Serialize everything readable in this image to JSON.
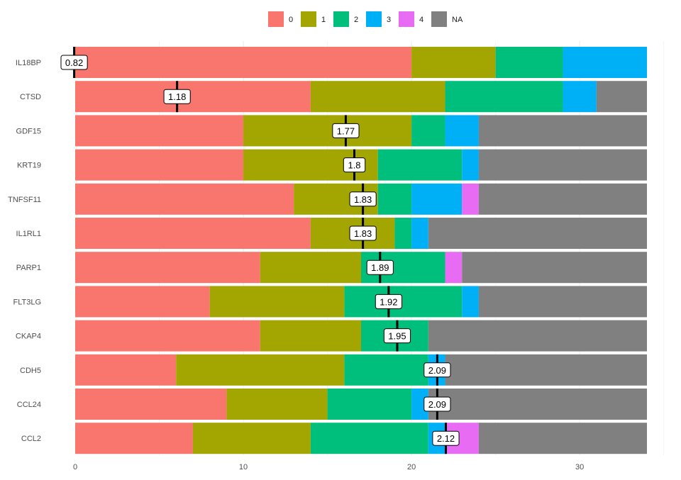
{
  "chart_data": {
    "type": "bar",
    "orientation": "horizontal",
    "stacked": true,
    "title": "",
    "xlabel": "",
    "ylabel": "",
    "xlim": [
      0,
      34
    ],
    "x_ticks": [
      0,
      10,
      20,
      30
    ],
    "grid": "vertical-only",
    "legend": {
      "position": "top-center",
      "entries": [
        "0",
        "1",
        "2",
        "3",
        "4",
        "NA"
      ]
    },
    "colors": {
      "0": "#F8766D",
      "1": "#A3A500",
      "2": "#00BF7D",
      "3": "#00B0F6",
      "4": "#E76BF3",
      "NA": "#808080"
    },
    "categories": [
      "IL18BP",
      "CTSD",
      "GDF15",
      "KRT19",
      "TNFSF11",
      "IL1RL1",
      "PARP1",
      "FLT3LG",
      "CKAP4",
      "CDH5",
      "CCL24",
      "CCL2"
    ],
    "series": [
      {
        "name": "0",
        "values": [
          20,
          14,
          10,
          10,
          13,
          14,
          11,
          8,
          11,
          6,
          9,
          7
        ]
      },
      {
        "name": "1",
        "values": [
          5,
          8,
          10,
          8,
          5,
          5,
          6,
          8,
          6,
          10,
          6,
          7
        ]
      },
      {
        "name": "2",
        "values": [
          4,
          7,
          2,
          5,
          2,
          1,
          5,
          7,
          4,
          5,
          5,
          7
        ]
      },
      {
        "name": "3",
        "values": [
          5,
          2,
          2,
          1,
          3,
          1,
          0,
          1,
          0,
          1,
          1,
          1
        ]
      },
      {
        "name": "4",
        "values": [
          0,
          0,
          0,
          0,
          1,
          0,
          1,
          0,
          0,
          0,
          0,
          2
        ]
      },
      {
        "name": "NA",
        "values": [
          0,
          3,
          10,
          10,
          10,
          13,
          11,
          10,
          13,
          12,
          13,
          10
        ]
      }
    ],
    "mean_markers": {
      "values": [
        0.82,
        1.18,
        1.77,
        1.8,
        1.83,
        1.83,
        1.89,
        1.92,
        1.95,
        2.09,
        2.09,
        2.12
      ],
      "labels": [
        "0.82",
        "1.18",
        "1.77",
        "1.8",
        "1.83",
        "1.83",
        "1.89",
        "1.92",
        "1.95",
        "2.09",
        "2.09",
        "2.12"
      ]
    }
  }
}
